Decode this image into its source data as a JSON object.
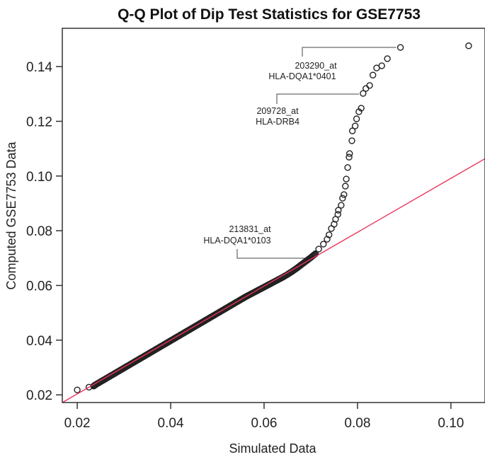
{
  "chart_data": {
    "type": "scatter",
    "title": "Q-Q Plot of Dip Test Statistics for GSE7753",
    "xlabel": "Simulated Data",
    "ylabel": "Computed GSE7753 Data",
    "xlim": [
      0.0168,
      0.1073
    ],
    "ylim": [
      0.0172,
      0.154
    ],
    "xticks": [
      "0.02",
      "0.04",
      "0.06",
      "0.08",
      "0.10"
    ],
    "xtick_values": [
      0.02,
      0.04,
      0.06,
      0.08,
      0.1
    ],
    "yticks": [
      "0.02",
      "0.04",
      "0.06",
      "0.08",
      "0.10",
      "0.12",
      "0.14"
    ],
    "ytick_values": [
      0.02,
      0.04,
      0.06,
      0.08,
      0.1,
      0.12,
      0.14
    ],
    "grid": false,
    "reference_line": {
      "color": "#e8345a",
      "slope": 0.985,
      "intercept": 0.00065
    },
    "point_color": "#222222",
    "points": [
      [
        0.02,
        0.0218
      ],
      [
        0.0225,
        0.0228
      ],
      [
        0.0235,
        0.0232
      ],
      [
        0.024,
        0.0238
      ],
      [
        0.025,
        0.0248
      ],
      [
        0.026,
        0.0258
      ],
      [
        0.027,
        0.0268
      ],
      [
        0.028,
        0.0278
      ],
      [
        0.029,
        0.0288
      ],
      [
        0.03,
        0.0298
      ],
      [
        0.031,
        0.0308
      ],
      [
        0.032,
        0.0318
      ],
      [
        0.033,
        0.0328
      ],
      [
        0.034,
        0.0338
      ],
      [
        0.035,
        0.0348
      ],
      [
        0.036,
        0.0358
      ],
      [
        0.037,
        0.0368
      ],
      [
        0.038,
        0.0378
      ],
      [
        0.039,
        0.0388
      ],
      [
        0.04,
        0.0398
      ],
      [
        0.041,
        0.0408
      ],
      [
        0.042,
        0.0418
      ],
      [
        0.043,
        0.0428
      ],
      [
        0.044,
        0.0438
      ],
      [
        0.045,
        0.0448
      ],
      [
        0.046,
        0.0458
      ],
      [
        0.047,
        0.0468
      ],
      [
        0.048,
        0.0478
      ],
      [
        0.049,
        0.0488
      ],
      [
        0.05,
        0.0498
      ],
      [
        0.051,
        0.0508
      ],
      [
        0.052,
        0.0518
      ],
      [
        0.053,
        0.0528
      ],
      [
        0.054,
        0.0538
      ],
      [
        0.055,
        0.0548
      ],
      [
        0.056,
        0.0558
      ],
      [
        0.057,
        0.0567
      ],
      [
        0.058,
        0.0576
      ],
      [
        0.059,
        0.0585
      ],
      [
        0.06,
        0.0594
      ],
      [
        0.061,
        0.0603
      ],
      [
        0.062,
        0.0612
      ],
      [
        0.063,
        0.0621
      ],
      [
        0.064,
        0.063
      ],
      [
        0.065,
        0.064
      ],
      [
        0.066,
        0.0651
      ],
      [
        0.067,
        0.0663
      ],
      [
        0.068,
        0.0676
      ],
      [
        0.069,
        0.0689
      ],
      [
        0.07,
        0.0702
      ],
      [
        0.071,
        0.0716
      ],
      [
        0.0717,
        0.0733
      ],
      [
        0.0727,
        0.0751
      ],
      [
        0.0735,
        0.0769
      ],
      [
        0.0739,
        0.0785
      ],
      [
        0.0744,
        0.0808
      ],
      [
        0.075,
        0.0824
      ],
      [
        0.0753,
        0.0842
      ],
      [
        0.0758,
        0.086
      ],
      [
        0.0759,
        0.0875
      ],
      [
        0.0765,
        0.0893
      ],
      [
        0.0768,
        0.0919
      ],
      [
        0.0771,
        0.0932
      ],
      [
        0.0774,
        0.0963
      ],
      [
        0.0776,
        0.0989
      ],
      [
        0.0779,
        0.1031
      ],
      [
        0.0782,
        0.1069
      ],
      [
        0.0783,
        0.1082
      ],
      [
        0.0788,
        0.1129
      ],
      [
        0.0789,
        0.1165
      ],
      [
        0.0795,
        0.1183
      ],
      [
        0.0798,
        0.1209
      ],
      [
        0.0803,
        0.1235
      ],
      [
        0.0808,
        0.1248
      ],
      [
        0.0812,
        0.1302
      ],
      [
        0.0818,
        0.132
      ],
      [
        0.0826,
        0.1331
      ],
      [
        0.0833,
        0.1369
      ],
      [
        0.0841,
        0.1395
      ],
      [
        0.0852,
        0.1403
      ],
      [
        0.0864,
        0.1429
      ],
      [
        0.0892,
        0.147
      ],
      [
        0.1038,
        0.1476
      ]
    ],
    "annotations": [
      {
        "probe": "203290_at",
        "gene": "HLA-DQA1*0401",
        "point": [
          0.0892,
          0.147
        ]
      },
      {
        "probe": "209728_at",
        "gene": "HLA-DRB4",
        "point": [
          0.0812,
          0.1302
        ]
      },
      {
        "probe": "213831_at",
        "gene": "HLA-DQA1*0103",
        "point": [
          0.0717,
          0.0733
        ]
      }
    ]
  }
}
